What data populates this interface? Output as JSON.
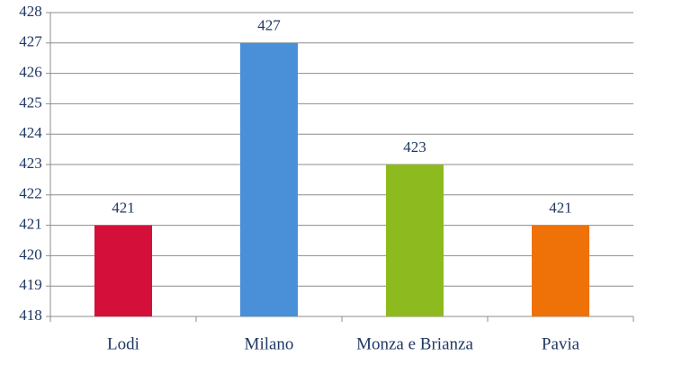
{
  "chart_data": {
    "type": "bar",
    "categories": [
      "Lodi",
      "Milano",
      "Monza e Brianza",
      "Pavia"
    ],
    "values": [
      421,
      427,
      423,
      421
    ],
    "colors": [
      "#d4103a",
      "#4a90d9",
      "#8dbb1f",
      "#ef7208"
    ],
    "ylim": [
      418,
      428
    ],
    "yticks": [
      418,
      419,
      420,
      421,
      422,
      423,
      424,
      425,
      426,
      427,
      428
    ],
    "grid": true
  }
}
